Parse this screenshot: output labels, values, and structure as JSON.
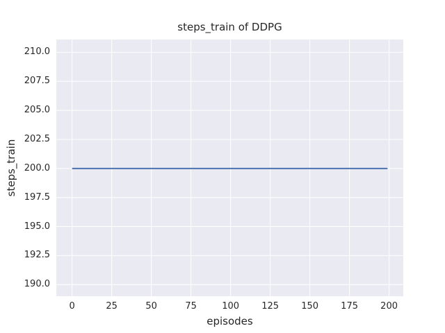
{
  "chart_data": {
    "type": "line",
    "title": "steps_train of DDPG",
    "xlabel": "episodes",
    "ylabel": "steps_train",
    "x_tick_labels": [
      "0",
      "25",
      "50",
      "75",
      "100",
      "125",
      "150",
      "175",
      "200"
    ],
    "y_tick_labels": [
      "190.0",
      "192.5",
      "195.0",
      "197.5",
      "200.0",
      "202.5",
      "205.0",
      "207.5",
      "210.0"
    ],
    "xlim": [
      -9.95,
      208.95
    ],
    "ylim": [
      189.0,
      211.1
    ],
    "grid": true,
    "series": [
      {
        "name": "steps_train",
        "color": "#4c72b0",
        "x": [
          0,
          199
        ],
        "y": [
          200,
          200
        ]
      }
    ],
    "colors": {
      "plot_background": "#eaeaf2",
      "gridline": "#ffffff",
      "line": "#4c72b0",
      "text": "#262626",
      "figure_background": "#ffffff"
    }
  }
}
